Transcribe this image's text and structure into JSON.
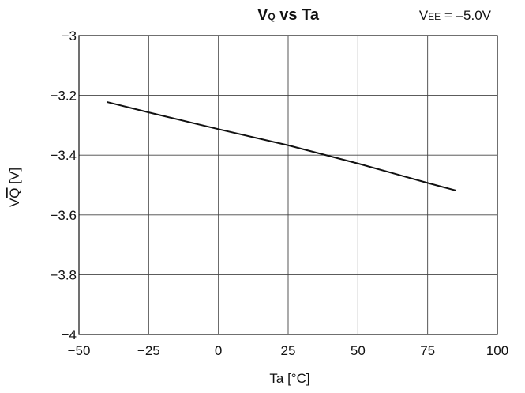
{
  "chart_data": {
    "type": "line",
    "title": {
      "main": "V",
      "sub": "Q",
      "rest": " vs Ta"
    },
    "condition": {
      "main": "V",
      "sub": "EE",
      "rest": " = –5.0V"
    },
    "xlabel": "Ta [°C]",
    "ylabel": {
      "main": "V",
      "sub": "Q",
      "rest": " [V]"
    },
    "xlim": [
      -50,
      100
    ],
    "ylim": [
      -4,
      -3
    ],
    "xticks": [
      -50,
      -25,
      0,
      25,
      50,
      75,
      100
    ],
    "xtick_labels": [
      "−50",
      "−25",
      "0",
      "25",
      "50",
      "75",
      "100"
    ],
    "yticks": [
      -3,
      -3.2,
      -3.4,
      -3.6,
      -3.8,
      -4
    ],
    "ytick_labels": [
      "−3",
      "−3.2",
      "−3.4",
      "−3.6",
      "−3.8",
      "−4"
    ],
    "grid": true,
    "series": [
      {
        "x": [
          -40,
          -25,
          0,
          25,
          50,
          75,
          85
        ],
        "y": [
          -3.222,
          -3.257,
          -3.313,
          -3.367,
          -3.428,
          -3.493,
          -3.518
        ],
        "color": "#111111"
      }
    ]
  }
}
